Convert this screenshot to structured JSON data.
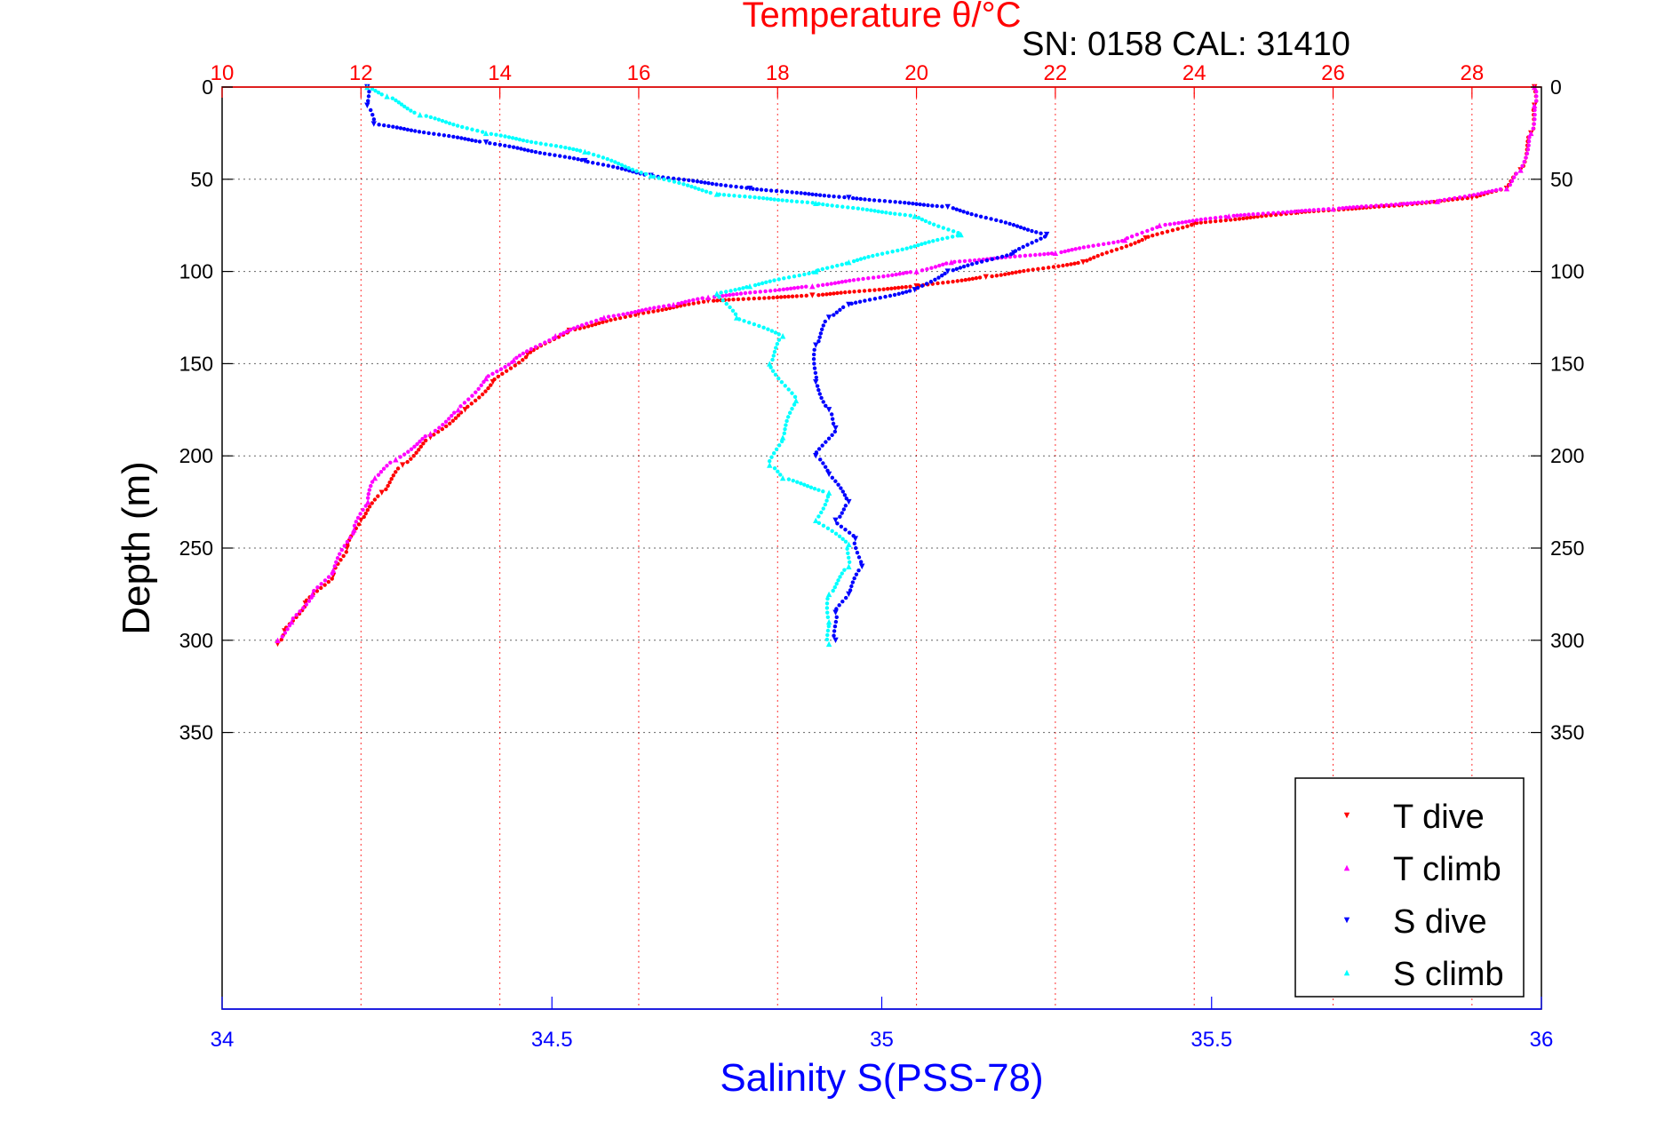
{
  "chart_data": {
    "type": "scatter",
    "title": "Temperature θ/°C",
    "subtitle": "SN: 0158  CAL: 31410",
    "xlabel_top": "Temperature θ/°C",
    "xlabel_bottom": "Salinity S(PSS-78)",
    "ylabel": "Depth (m)",
    "temperature_axis": {
      "range": [
        10,
        29
      ],
      "ticks": [
        "10",
        "12",
        "14",
        "16",
        "18",
        "20",
        "22",
        "24",
        "26",
        "28"
      ],
      "color": "#ff0000"
    },
    "salinity_axis": {
      "range": [
        34,
        36
      ],
      "ticks": [
        "34",
        "34.5",
        "35",
        "35.5",
        "36"
      ],
      "color": "#0000ff"
    },
    "depth_axis": {
      "range": [
        0,
        500
      ],
      "reversed": true,
      "ticks": [
        "0",
        "50",
        "100",
        "150",
        "200",
        "250",
        "300",
        "350"
      ]
    },
    "grid": true,
    "legend_placement": "bottom-right",
    "legend": [
      {
        "label": "T dive",
        "color": "#ff0000"
      },
      {
        "label": "T climb",
        "color": "#ff00ff"
      },
      {
        "label": "S dive",
        "color": "#0000ff"
      },
      {
        "label": "S climb",
        "color": "#00ffff"
      }
    ],
    "series": [
      {
        "name": "T dive",
        "axis": "temperature",
        "color": "#ff0000",
        "points": [
          [
            28.9,
            0
          ],
          [
            28.9,
            10
          ],
          [
            28.85,
            25
          ],
          [
            28.7,
            45
          ],
          [
            28.5,
            55
          ],
          [
            28.0,
            60
          ],
          [
            27.0,
            64
          ],
          [
            25.5,
            68
          ],
          [
            24.0,
            74
          ],
          [
            23.3,
            82
          ],
          [
            22.4,
            95
          ],
          [
            21.0,
            103
          ],
          [
            20.0,
            108
          ],
          [
            18.5,
            113
          ],
          [
            17.0,
            116
          ],
          [
            16.0,
            123
          ],
          [
            15.0,
            132
          ],
          [
            14.4,
            145
          ],
          [
            13.9,
            160
          ],
          [
            13.5,
            175
          ],
          [
            13.0,
            190
          ],
          [
            12.6,
            205
          ],
          [
            12.3,
            220
          ],
          [
            12.0,
            235
          ],
          [
            11.8,
            250
          ],
          [
            11.6,
            265
          ],
          [
            11.2,
            280
          ],
          [
            10.9,
            295
          ],
          [
            10.8,
            302
          ]
        ]
      },
      {
        "name": "T climb",
        "axis": "temperature",
        "color": "#ff00ff",
        "points": [
          [
            28.9,
            0
          ],
          [
            28.9,
            10
          ],
          [
            28.85,
            25
          ],
          [
            28.7,
            45
          ],
          [
            28.5,
            55
          ],
          [
            27.5,
            62
          ],
          [
            26.0,
            66
          ],
          [
            24.5,
            70
          ],
          [
            23.5,
            75
          ],
          [
            23.0,
            83
          ],
          [
            22.0,
            90
          ],
          [
            20.5,
            95
          ],
          [
            20.0,
            100
          ],
          [
            18.5,
            108
          ],
          [
            17.0,
            114
          ],
          [
            16.5,
            118
          ],
          [
            15.5,
            125
          ],
          [
            14.8,
            135
          ],
          [
            14.2,
            148
          ],
          [
            13.8,
            158
          ],
          [
            13.4,
            175
          ],
          [
            13.0,
            188
          ],
          [
            12.5,
            202
          ],
          [
            12.2,
            212
          ],
          [
            12.1,
            225
          ],
          [
            11.9,
            240
          ],
          [
            11.6,
            262
          ],
          [
            11.3,
            275
          ],
          [
            11.0,
            290
          ],
          [
            10.8,
            300
          ]
        ]
      },
      {
        "name": "S dive",
        "axis": "salinity",
        "color": "#0000ff",
        "points": [
          [
            34.22,
            0
          ],
          [
            34.22,
            10
          ],
          [
            34.23,
            20
          ],
          [
            34.4,
            30
          ],
          [
            34.55,
            40
          ],
          [
            34.65,
            48
          ],
          [
            34.8,
            55
          ],
          [
            34.95,
            60
          ],
          [
            35.1,
            65
          ],
          [
            35.25,
            80
          ],
          [
            35.2,
            90
          ],
          [
            35.1,
            100
          ],
          [
            35.05,
            110
          ],
          [
            34.95,
            118
          ],
          [
            34.92,
            125
          ],
          [
            34.9,
            140
          ],
          [
            34.9,
            160
          ],
          [
            34.92,
            175
          ],
          [
            34.93,
            185
          ],
          [
            34.9,
            200
          ],
          [
            34.92,
            210
          ],
          [
            34.95,
            225
          ],
          [
            34.93,
            235
          ],
          [
            34.96,
            245
          ],
          [
            34.97,
            260
          ],
          [
            34.95,
            275
          ],
          [
            34.93,
            285
          ],
          [
            34.93,
            300
          ]
        ]
      },
      {
        "name": "S climb",
        "axis": "salinity",
        "color": "#00ffff",
        "points": [
          [
            34.22,
            0
          ],
          [
            34.25,
            5
          ],
          [
            34.3,
            15
          ],
          [
            34.4,
            25
          ],
          [
            34.55,
            35
          ],
          [
            34.65,
            48
          ],
          [
            34.75,
            58
          ],
          [
            34.9,
            63
          ],
          [
            35.05,
            70
          ],
          [
            35.12,
            80
          ],
          [
            34.95,
            95
          ],
          [
            34.9,
            100
          ],
          [
            34.8,
            108
          ],
          [
            34.75,
            112
          ],
          [
            34.78,
            125
          ],
          [
            34.85,
            135
          ],
          [
            34.83,
            150
          ],
          [
            34.87,
            170
          ],
          [
            34.85,
            190
          ],
          [
            34.83,
            205
          ],
          [
            34.85,
            212
          ],
          [
            34.92,
            220
          ],
          [
            34.9,
            235
          ],
          [
            34.95,
            248
          ],
          [
            34.95,
            260
          ],
          [
            34.92,
            275
          ],
          [
            34.92,
            290
          ],
          [
            34.92,
            302
          ]
        ]
      }
    ]
  }
}
